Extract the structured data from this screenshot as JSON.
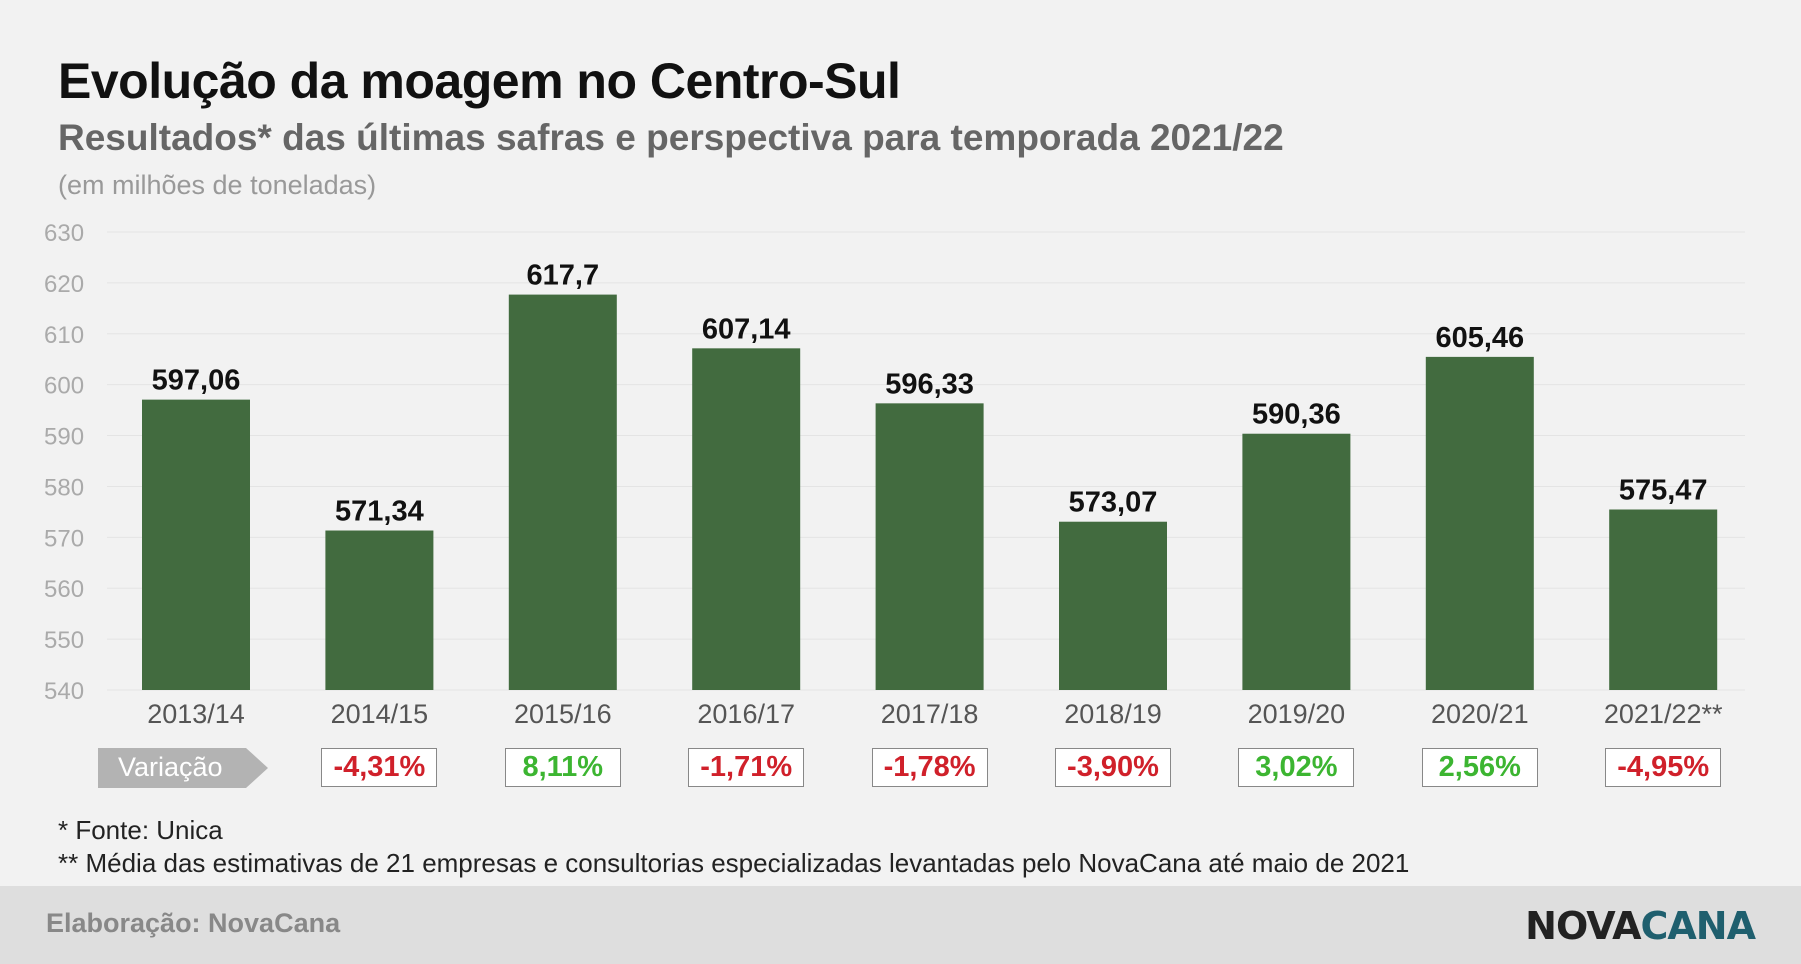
{
  "title": "Evolução da moagem no Centro-Sul",
  "subtitle": "Resultados* das últimas safras e perspectiva para temporada 2021/22",
  "unit_note": "(em milhões de toneladas)",
  "colors": {
    "bar": "#426b3f",
    "negative": "#d0202a",
    "positive": "#3cb531",
    "variation_tag": "#b3b3b3"
  },
  "chart_data": {
    "type": "bar",
    "title": "Evolução da moagem no Centro-Sul",
    "subtitle": "Resultados* das últimas safras e perspectiva para temporada 2021/22",
    "ylabel": "(em milhões de toneladas)",
    "categories": [
      "2013/14",
      "2014/15",
      "2015/16",
      "2016/17",
      "2017/18",
      "2018/19",
      "2019/20",
      "2020/21",
      "2021/22**"
    ],
    "values": [
      597.06,
      571.34,
      617.7,
      607.14,
      596.33,
      573.07,
      590.36,
      605.46,
      575.47
    ],
    "value_labels": [
      "597,06",
      "571,34",
      "617,7",
      "607,14",
      "596,33",
      "573,07",
      "590,36",
      "605,46",
      "575,47"
    ],
    "ylim": [
      540,
      630
    ],
    "yticks": [
      540,
      550,
      560,
      570,
      580,
      590,
      600,
      610,
      620,
      630
    ],
    "grid": true
  },
  "variation": {
    "label": "Variação",
    "values": [
      {
        "text": "-4,31%",
        "sign": "negative"
      },
      {
        "text": "8,11%",
        "sign": "positive"
      },
      {
        "text": "-1,71%",
        "sign": "negative"
      },
      {
        "text": "-1,78%",
        "sign": "negative"
      },
      {
        "text": "-3,90%",
        "sign": "negative"
      },
      {
        "text": "3,02%",
        "sign": "positive"
      },
      {
        "text": "2,56%",
        "sign": "positive"
      },
      {
        "text": "-4,95%",
        "sign": "negative"
      }
    ]
  },
  "notes": {
    "source": "* Fonte: Unica",
    "estimate": "** Média das estimativas de 21 empresas e consultorias especializadas levantadas pelo NovaCana até maio de 2021"
  },
  "footer": {
    "credit": "Elaboração: NovaCana",
    "logo_part1": "NOVA",
    "logo_part2": "CANA"
  }
}
